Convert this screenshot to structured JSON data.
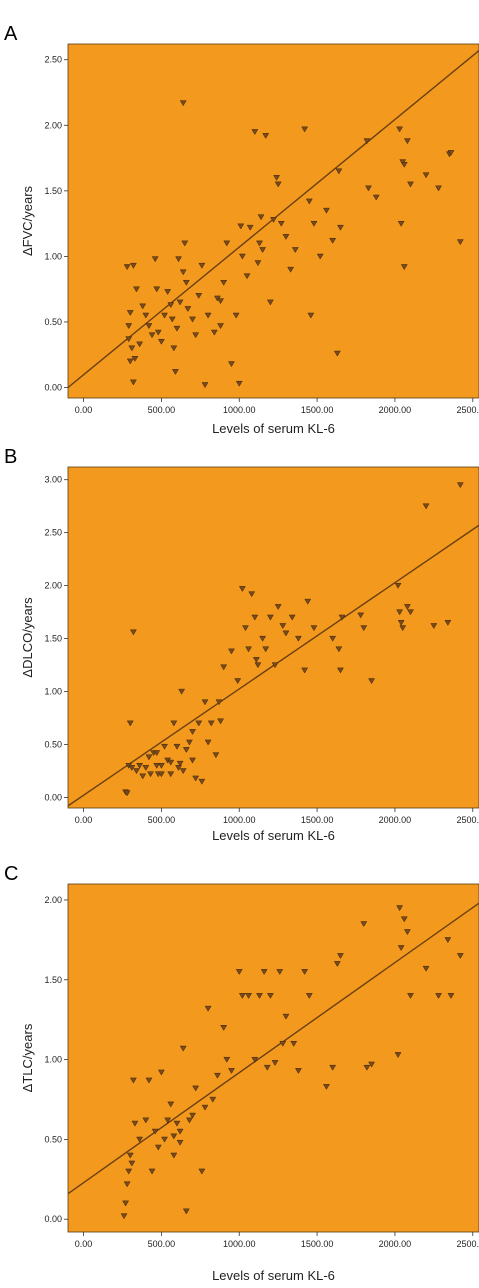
{
  "chart_data": [
    {
      "type": "scatter",
      "panel": "A",
      "xlabel": "Levels of serum KL-6",
      "ylabel": "ΔFVC/years",
      "xticks": [
        "0.00",
        "500.00",
        "1000.00",
        "1500.00",
        "2000.00",
        "2500.00"
      ],
      "yticks": [
        "0.00",
        "0.50",
        "1.00",
        "1.50",
        "2.00",
        "2.50"
      ],
      "xlim": [
        -100,
        2540
      ],
      "ylim": [
        -0.08,
        2.62
      ],
      "fit_line": [
        [
          -100,
          0.0
        ],
        [
          2540,
          2.57
        ]
      ],
      "background": "#f39a1e",
      "marker_color": "#7a4b1a",
      "points": [
        [
          280,
          0.92
        ],
        [
          320,
          0.93
        ],
        [
          340,
          0.75
        ],
        [
          300,
          0.57
        ],
        [
          290,
          0.47
        ],
        [
          290,
          0.37
        ],
        [
          310,
          0.3
        ],
        [
          300,
          0.2
        ],
        [
          330,
          0.22
        ],
        [
          360,
          0.33
        ],
        [
          320,
          0.04
        ],
        [
          380,
          0.62
        ],
        [
          400,
          0.55
        ],
        [
          420,
          0.47
        ],
        [
          440,
          0.4
        ],
        [
          460,
          0.98
        ],
        [
          470,
          0.75
        ],
        [
          480,
          0.42
        ],
        [
          500,
          0.35
        ],
        [
          520,
          0.55
        ],
        [
          540,
          0.73
        ],
        [
          560,
          0.63
        ],
        [
          570,
          0.52
        ],
        [
          580,
          0.3
        ],
        [
          590,
          0.12
        ],
        [
          600,
          0.45
        ],
        [
          620,
          0.65
        ],
        [
          640,
          0.88
        ],
        [
          650,
          1.1
        ],
        [
          670,
          0.6
        ],
        [
          660,
          0.8
        ],
        [
          700,
          0.52
        ],
        [
          720,
          0.4
        ],
        [
          740,
          0.7
        ],
        [
          760,
          0.93
        ],
        [
          780,
          0.02
        ],
        [
          800,
          0.55
        ],
        [
          840,
          0.42
        ],
        [
          860,
          0.68
        ],
        [
          880,
          0.47
        ],
        [
          900,
          0.8
        ],
        [
          920,
          1.1
        ],
        [
          950,
          0.18
        ],
        [
          980,
          0.55
        ],
        [
          1000,
          0.03
        ],
        [
          1020,
          1.0
        ],
        [
          1050,
          0.85
        ],
        [
          1070,
          1.22
        ],
        [
          1100,
          1.95
        ],
        [
          1120,
          0.95
        ],
        [
          1130,
          1.1
        ],
        [
          1150,
          1.05
        ],
        [
          1170,
          1.92
        ],
        [
          1200,
          0.65
        ],
        [
          1220,
          1.28
        ],
        [
          1240,
          1.6
        ],
        [
          1250,
          1.55
        ],
        [
          1270,
          1.25
        ],
        [
          1300,
          1.15
        ],
        [
          1330,
          0.9
        ],
        [
          1360,
          1.05
        ],
        [
          1420,
          1.97
        ],
        [
          1450,
          1.42
        ],
        [
          1480,
          1.25
        ],
        [
          1460,
          0.55
        ],
        [
          1520,
          1.0
        ],
        [
          1560,
          1.35
        ],
        [
          1600,
          1.12
        ],
        [
          1630,
          0.26
        ],
        [
          1640,
          1.65
        ],
        [
          1650,
          1.22
        ],
        [
          1820,
          1.88
        ],
        [
          1830,
          1.52
        ],
        [
          1880,
          1.45
        ],
        [
          2030,
          1.97
        ],
        [
          2040,
          1.25
        ],
        [
          2050,
          1.72
        ],
        [
          2060,
          1.7
        ],
        [
          2060,
          0.92
        ],
        [
          2080,
          1.88
        ],
        [
          2100,
          1.55
        ],
        [
          2200,
          1.62
        ],
        [
          2280,
          1.52
        ],
        [
          2350,
          1.78
        ],
        [
          2360,
          1.79
        ],
        [
          2420,
          1.11
        ],
        [
          640,
          2.17
        ],
        [
          1010,
          1.23
        ],
        [
          880,
          0.66
        ],
        [
          1140,
          1.3
        ],
        [
          610,
          0.98
        ]
      ]
    },
    {
      "type": "scatter",
      "panel": "B",
      "xlabel": "Levels of serum KL-6",
      "ylabel": "ΔDLCO/years",
      "xticks": [
        "0.00",
        "500.00",
        "1000.00",
        "1500.00",
        "2000.00",
        "2500.00"
      ],
      "yticks": [
        "0.00",
        "0.50",
        "1.00",
        "1.50",
        "2.00",
        "2.50",
        "3.00"
      ],
      "xlim": [
        -100,
        2540
      ],
      "ylim": [
        -0.1,
        3.12
      ],
      "fit_line": [
        [
          -100,
          -0.08
        ],
        [
          2540,
          2.57
        ]
      ],
      "background": "#f39a1e",
      "marker_color": "#7a4b1a",
      "points": [
        [
          270,
          0.05
        ],
        [
          280,
          0.04
        ],
        [
          290,
          0.3
        ],
        [
          300,
          0.7
        ],
        [
          310,
          0.28
        ],
        [
          320,
          1.56
        ],
        [
          340,
          0.25
        ],
        [
          360,
          0.3
        ],
        [
          380,
          0.2
        ],
        [
          400,
          0.28
        ],
        [
          420,
          0.38
        ],
        [
          430,
          0.22
        ],
        [
          450,
          0.42
        ],
        [
          470,
          0.3
        ],
        [
          480,
          0.22
        ],
        [
          500,
          0.3
        ],
        [
          520,
          0.48
        ],
        [
          540,
          0.35
        ],
        [
          560,
          0.22
        ],
        [
          580,
          0.7
        ],
        [
          600,
          0.48
        ],
        [
          620,
          0.32
        ],
        [
          630,
          1.0
        ],
        [
          640,
          0.25
        ],
        [
          660,
          0.45
        ],
        [
          680,
          0.52
        ],
        [
          700,
          0.35
        ],
        [
          720,
          0.18
        ],
        [
          740,
          0.7
        ],
        [
          760,
          0.15
        ],
        [
          780,
          0.9
        ],
        [
          800,
          0.52
        ],
        [
          820,
          0.7
        ],
        [
          850,
          0.4
        ],
        [
          870,
          0.9
        ],
        [
          880,
          0.72
        ],
        [
          900,
          1.23
        ],
        [
          950,
          1.38
        ],
        [
          990,
          1.1
        ],
        [
          1020,
          1.97
        ],
        [
          1040,
          1.6
        ],
        [
          1060,
          1.4
        ],
        [
          1080,
          1.92
        ],
        [
          1100,
          1.7
        ],
        [
          1120,
          1.25
        ],
        [
          1150,
          1.5
        ],
        [
          1170,
          1.4
        ],
        [
          1200,
          1.7
        ],
        [
          1230,
          1.25
        ],
        [
          1250,
          1.8
        ],
        [
          1280,
          1.62
        ],
        [
          1300,
          1.55
        ],
        [
          1340,
          1.7
        ],
        [
          1380,
          1.5
        ],
        [
          1420,
          1.2
        ],
        [
          1440,
          1.85
        ],
        [
          1480,
          1.6
        ],
        [
          1600,
          1.5
        ],
        [
          1640,
          1.4
        ],
        [
          1650,
          1.2
        ],
        [
          1660,
          1.7
        ],
        [
          1780,
          1.72
        ],
        [
          1800,
          1.6
        ],
        [
          1850,
          1.1
        ],
        [
          2020,
          2.0
        ],
        [
          2030,
          1.75
        ],
        [
          2040,
          1.65
        ],
        [
          2050,
          1.6
        ],
        [
          2080,
          1.8
        ],
        [
          2100,
          1.75
        ],
        [
          2200,
          2.75
        ],
        [
          2250,
          1.62
        ],
        [
          2340,
          1.65
        ],
        [
          2420,
          2.95
        ],
        [
          500,
          0.22
        ],
        [
          560,
          0.33
        ],
        [
          610,
          0.28
        ],
        [
          470,
          0.42
        ],
        [
          700,
          0.62
        ],
        [
          1110,
          1.3
        ]
      ]
    },
    {
      "type": "scatter",
      "panel": "C",
      "xlabel": "Levels of serum KL-6",
      "ylabel": "ΔTLC/years",
      "xticks": [
        "0.00",
        "500.00",
        "1000.00",
        "1500.00",
        "2000.00",
        "2500.00"
      ],
      "yticks": [
        "0.00",
        "0.50",
        "1.00",
        "1.50",
        "2.00"
      ],
      "xlim": [
        -100,
        2540
      ],
      "ylim": [
        -0.08,
        2.1
      ],
      "fit_line": [
        [
          -100,
          0.16
        ],
        [
          2540,
          1.98
        ]
      ],
      "background": "#f39a1e",
      "marker_color": "#7a4b1a",
      "points": [
        [
          260,
          0.02
        ],
        [
          270,
          0.1
        ],
        [
          280,
          0.22
        ],
        [
          290,
          0.3
        ],
        [
          300,
          0.4
        ],
        [
          310,
          0.35
        ],
        [
          320,
          0.87
        ],
        [
          330,
          0.6
        ],
        [
          360,
          0.5
        ],
        [
          400,
          0.62
        ],
        [
          420,
          0.87
        ],
        [
          440,
          0.3
        ],
        [
          460,
          0.55
        ],
        [
          480,
          0.45
        ],
        [
          500,
          0.92
        ],
        [
          520,
          0.5
        ],
        [
          540,
          0.62
        ],
        [
          560,
          0.72
        ],
        [
          580,
          0.4
        ],
        [
          600,
          0.6
        ],
        [
          620,
          0.55
        ],
        [
          640,
          1.07
        ],
        [
          660,
          0.05
        ],
        [
          680,
          0.62
        ],
        [
          700,
          0.65
        ],
        [
          720,
          0.82
        ],
        [
          760,
          0.3
        ],
        [
          780,
          0.7
        ],
        [
          800,
          1.32
        ],
        [
          830,
          0.75
        ],
        [
          860,
          0.9
        ],
        [
          900,
          1.2
        ],
        [
          920,
          1.0
        ],
        [
          950,
          0.93
        ],
        [
          1000,
          1.55
        ],
        [
          1020,
          1.4
        ],
        [
          1060,
          1.4
        ],
        [
          1100,
          1.0
        ],
        [
          1130,
          1.4
        ],
        [
          1160,
          1.55
        ],
        [
          1180,
          0.95
        ],
        [
          1200,
          1.4
        ],
        [
          1230,
          0.98
        ],
        [
          1260,
          1.55
        ],
        [
          1280,
          1.1
        ],
        [
          1300,
          1.27
        ],
        [
          1350,
          1.1
        ],
        [
          1380,
          0.93
        ],
        [
          1420,
          1.55
        ],
        [
          1450,
          1.4
        ],
        [
          1560,
          0.83
        ],
        [
          1600,
          0.95
        ],
        [
          1630,
          1.6
        ],
        [
          1650,
          1.65
        ],
        [
          1800,
          1.85
        ],
        [
          1820,
          0.95
        ],
        [
          1850,
          0.97
        ],
        [
          2020,
          1.03
        ],
        [
          2030,
          1.95
        ],
        [
          2040,
          1.7
        ],
        [
          2060,
          1.88
        ],
        [
          2080,
          1.8
        ],
        [
          2100,
          1.4
        ],
        [
          2200,
          1.57
        ],
        [
          2280,
          1.4
        ],
        [
          2340,
          1.75
        ],
        [
          2360,
          1.4
        ],
        [
          2420,
          1.65
        ],
        [
          580,
          0.52
        ],
        [
          620,
          0.48
        ]
      ]
    }
  ],
  "panels": [
    {
      "letter": "A"
    },
    {
      "letter": "B"
    },
    {
      "letter": "C"
    }
  ]
}
